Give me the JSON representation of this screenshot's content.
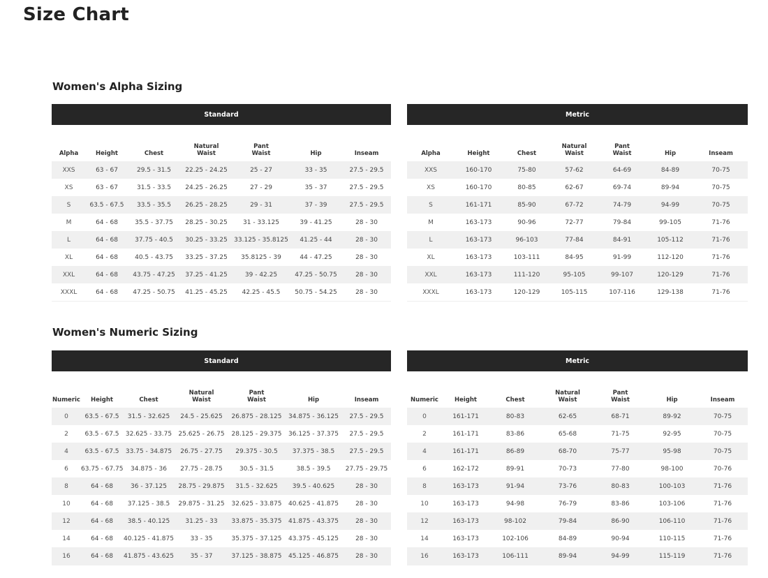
{
  "page_title": "Size Chart",
  "sections": [
    {
      "title": "Women's Alpha Sizing",
      "tables": [
        {
          "label": "Standard",
          "headers": [
            "Alpha",
            "Height",
            "Chest",
            "Natural\nWaist",
            "Pant\nWaist",
            "Hip",
            "Inseam"
          ],
          "rows": [
            [
              "XXS",
              "63 - 67",
              "29.5 - 31.5",
              "22.25 - 24.25",
              "25 - 27",
              "33 - 35",
              "27.5 - 29.5"
            ],
            [
              "XS",
              "63 - 67",
              "31.5 - 33.5",
              "24.25 - 26.25",
              "27 - 29",
              "35 - 37",
              "27.5 - 29.5"
            ],
            [
              "S",
              "63.5 - 67.5",
              "33.5 - 35.5",
              "26.25 - 28.25",
              "29 - 31",
              "37 - 39",
              "27.5 - 29.5"
            ],
            [
              "M",
              "64 - 68",
              "35.5 - 37.75",
              "28.25 - 30.25",
              "31 - 33.125",
              "39 - 41.25",
              "28 - 30"
            ],
            [
              "L",
              "64 - 68",
              "37.75 - 40.5",
              "30.25 - 33.25",
              "33.125 - 35.8125",
              "41.25 - 44",
              "28 - 30"
            ],
            [
              "XL",
              "64 - 68",
              "40.5 - 43.75",
              "33.25 - 37.25",
              "35.8125 - 39",
              "44 - 47.25",
              "28 - 30"
            ],
            [
              "XXL",
              "64 - 68",
              "43.75 - 47.25",
              "37.25 - 41.25",
              "39 - 42.25",
              "47.25 - 50.75",
              "28 - 30"
            ],
            [
              "XXXL",
              "64 - 68",
              "47.25 - 50.75",
              "41.25 - 45.25",
              "42.25 - 45.5",
              "50.75 - 54.25",
              "28 - 30"
            ]
          ]
        },
        {
          "label": "Metric",
          "headers": [
            "Alpha",
            "Height",
            "Chest",
            "Natural\nWaist",
            "Pant\nWaist",
            "Hip",
            "Inseam"
          ],
          "rows": [
            [
              "XXS",
              "160-170",
              "75-80",
              "57-62",
              "64-69",
              "84-89",
              "70-75"
            ],
            [
              "XS",
              "160-170",
              "80-85",
              "62-67",
              "69-74",
              "89-94",
              "70-75"
            ],
            [
              "S",
              "161-171",
              "85-90",
              "67-72",
              "74-79",
              "94-99",
              "70-75"
            ],
            [
              "M",
              "163-173",
              "90-96",
              "72-77",
              "79-84",
              "99-105",
              "71-76"
            ],
            [
              "L",
              "163-173",
              "96-103",
              "77-84",
              "84-91",
              "105-112",
              "71-76"
            ],
            [
              "XL",
              "163-173",
              "103-111",
              "84-95",
              "91-99",
              "112-120",
              "71-76"
            ],
            [
              "XXL",
              "163-173",
              "111-120",
              "95-105",
              "99-107",
              "120-129",
              "71-76"
            ],
            [
              "XXXL",
              "163-173",
              "120-129",
              "105-115",
              "107-116",
              "129-138",
              "71-76"
            ]
          ]
        }
      ]
    },
    {
      "title": "Women's Numeric Sizing",
      "tables": [
        {
          "label": "Standard",
          "headers": [
            "Numeric",
            "Height",
            "Chest",
            "Natural\nWaist",
            "Pant\nWaist",
            "Hip",
            "Inseam"
          ],
          "rows": [
            [
              "0",
              "63.5 - 67.5",
              "31.5 - 32.625",
              "24.5 - 25.625",
              "26.875 - 28.125",
              "34.875 - 36.125",
              "27.5 - 29.5"
            ],
            [
              "2",
              "63.5 - 67.5",
              "32.625 - 33.75",
              "25.625 - 26.75",
              "28.125 - 29.375",
              "36.125 - 37.375",
              "27.5 - 29.5"
            ],
            [
              "4",
              "63.5 - 67.5",
              "33.75 - 34.875",
              "26.75 - 27.75",
              "29.375 - 30.5",
              "37.375 - 38.5",
              "27.5 - 29.5"
            ],
            [
              "6",
              "63.75 - 67.75",
              "34.875 - 36",
              "27.75 - 28.75",
              "30.5 - 31.5",
              "38.5 - 39.5",
              "27.75 - 29.75"
            ],
            [
              "8",
              "64 - 68",
              "36 - 37.125",
              "28.75 - 29.875",
              "31.5 - 32.625",
              "39.5 - 40.625",
              "28 - 30"
            ],
            [
              "10",
              "64 - 68",
              "37.125 - 38.5",
              "29.875 - 31.25",
              "32.625 - 33.875",
              "40.625 - 41.875",
              "28 - 30"
            ],
            [
              "12",
              "64 - 68",
              "38.5 - 40.125",
              "31.25 - 33",
              "33.875 - 35.375",
              "41.875 - 43.375",
              "28 - 30"
            ],
            [
              "14",
              "64 - 68",
              "40.125 - 41.875",
              "33 - 35",
              "35.375 - 37.125",
              "43.375 - 45.125",
              "28 - 30"
            ],
            [
              "16",
              "64 - 68",
              "41.875 - 43.625",
              "35 - 37",
              "37.125 - 38.875",
              "45.125 - 46.875",
              "28 - 30"
            ]
          ]
        },
        {
          "label": "Metric",
          "headers": [
            "Numeric",
            "Height",
            "Chest",
            "Natural\nWaist",
            "Pant\nWaist",
            "Hip",
            "Inseam"
          ],
          "rows": [
            [
              "0",
              "161-171",
              "80-83",
              "62-65",
              "68-71",
              "89-92",
              "70-75"
            ],
            [
              "2",
              "161-171",
              "83-86",
              "65-68",
              "71-75",
              "92-95",
              "70-75"
            ],
            [
              "4",
              "161-171",
              "86-89",
              "68-70",
              "75-77",
              "95-98",
              "70-75"
            ],
            [
              "6",
              "162-172",
              "89-91",
              "70-73",
              "77-80",
              "98-100",
              "70-76"
            ],
            [
              "8",
              "163-173",
              "91-94",
              "73-76",
              "80-83",
              "100-103",
              "71-76"
            ],
            [
              "10",
              "163-173",
              "94-98",
              "76-79",
              "83-86",
              "103-106",
              "71-76"
            ],
            [
              "12",
              "163-173",
              "98-102",
              "79-84",
              "86-90",
              "106-110",
              "71-76"
            ],
            [
              "14",
              "163-173",
              "102-106",
              "84-89",
              "90-94",
              "110-115",
              "71-76"
            ],
            [
              "16",
              "163-173",
              "106-111",
              "89-94",
              "94-99",
              "115-119",
              "71-76"
            ]
          ]
        }
      ]
    }
  ]
}
